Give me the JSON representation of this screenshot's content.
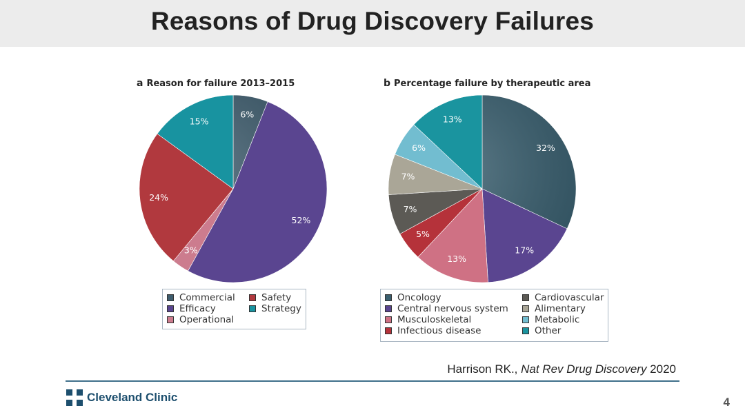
{
  "title": "Reasons of Drug Discovery Failures",
  "citation": {
    "author": "Harrison RK., ",
    "journal": "Nat Rev Drug Discovery",
    "year": " 2020"
  },
  "footer": {
    "logo_text": "Cleveland Clinic",
    "page_number": "4"
  },
  "chart_data": [
    {
      "type": "pie",
      "panel_letter": "a",
      "title": "Reason for failure 2013–2015",
      "start_angle_deg": 0,
      "direction": "clockwise",
      "slices": [
        {
          "name": "Commercial",
          "value": 6,
          "label": "6%",
          "color": "#3f5d6e"
        },
        {
          "name": "Efficacy",
          "value": 52,
          "label": "52%",
          "color": "#5a4590"
        },
        {
          "name": "Operational",
          "value": 3,
          "label": "3%",
          "color": "#cc7c8e"
        },
        {
          "name": "Safety",
          "value": 24,
          "label": "24%",
          "color": "#b1393e"
        },
        {
          "name": "Strategy",
          "value": 15,
          "label": "15%",
          "color": "#1893a0"
        }
      ],
      "legend": [
        [
          "Commercial",
          "Efficacy",
          "Operational"
        ],
        [
          "Safety",
          "Strategy"
        ]
      ]
    },
    {
      "type": "pie",
      "panel_letter": "b",
      "title": "Percentage failure by therapeutic area",
      "start_angle_deg": 0,
      "direction": "clockwise",
      "slices": [
        {
          "name": "Oncology",
          "value": 32,
          "label": "32%",
          "color": "#3a5f6f"
        },
        {
          "name": "Central nervous system",
          "value": 17,
          "label": "17%",
          "color": "#5a4590"
        },
        {
          "name": "Musculoskeletal",
          "value": 13,
          "label": "13%",
          "color": "#cf7184"
        },
        {
          "name": "Infectious disease",
          "value": 5,
          "label": "5%",
          "color": "#b5323a"
        },
        {
          "name": "Cardiovascular",
          "value": 7,
          "label": "7%",
          "color": "#5c5a55"
        },
        {
          "name": "Alimentary",
          "value": 7,
          "label": "7%",
          "color": "#aaa697"
        },
        {
          "name": "Metabolic",
          "value": 6,
          "label": "6%",
          "color": "#72bdd0"
        },
        {
          "name": "Other",
          "value": 13,
          "label": "13%",
          "color": "#1a949f"
        }
      ],
      "legend": [
        [
          "Oncology",
          "Central nervous system",
          "Musculoskeletal",
          "Infectious disease"
        ],
        [
          "Cardiovascular",
          "Alimentary",
          "Metabolic",
          "Other"
        ]
      ]
    }
  ]
}
